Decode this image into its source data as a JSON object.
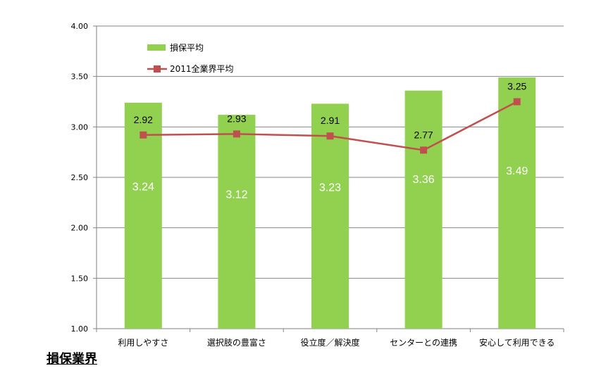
{
  "chart_data": {
    "type": "bar",
    "categories": [
      "利用しやすさ",
      "選択肢の豊富さ",
      "役立度／解決度",
      "センターとの連携",
      "安心して利用できる"
    ],
    "series": [
      {
        "name": "損保平均",
        "type": "bar",
        "color": "#92d050",
        "values": [
          3.24,
          3.12,
          3.23,
          3.36,
          3.49
        ],
        "labels": [
          "3.24",
          "3.12",
          "3.23",
          "3.36",
          "3.49"
        ]
      },
      {
        "name": "2011全業界平均",
        "type": "line",
        "color": "#c0504d",
        "values": [
          2.92,
          2.93,
          2.91,
          2.77,
          3.25
        ],
        "labels": [
          "2.92",
          "2.93",
          "2.91",
          "2.77",
          "3.25"
        ]
      }
    ],
    "ylim": [
      1.0,
      4.0
    ],
    "yticks": [
      "1.00",
      "1.50",
      "2.00",
      "2.50",
      "3.00",
      "3.50",
      "4.00"
    ],
    "grid": true,
    "legend_position": "top-left",
    "xlabel": "",
    "ylabel": ""
  },
  "footer": {
    "title": "損保業界"
  }
}
